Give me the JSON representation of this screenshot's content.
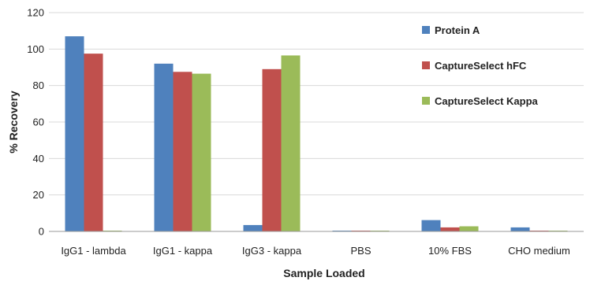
{
  "chart_data": {
    "type": "bar",
    "title": "",
    "xlabel": "Sample Loaded",
    "ylabel": "% Recovery",
    "ylim": [
      0,
      120
    ],
    "yticks": [
      0,
      20,
      40,
      60,
      80,
      100,
      120
    ],
    "grid": true,
    "legend_position": "top-right",
    "categories": [
      "IgG1 - lambda",
      "IgG1 - kappa",
      "IgG3 - kappa",
      "PBS",
      "10% FBS",
      "CHO medium"
    ],
    "series": [
      {
        "name": "Protein A",
        "color": "#4f81bd",
        "values": [
          107,
          92,
          3.5,
          0.2,
          6.2,
          2.2
        ]
      },
      {
        "name": "CaptureSelect hFC",
        "color": "#c0504d",
        "values": [
          97.5,
          87.5,
          89,
          0.2,
          2.2,
          0.2
        ]
      },
      {
        "name": "CaptureSelect Kappa",
        "color": "#9bbb59",
        "values": [
          0.2,
          86.5,
          96.5,
          0.2,
          2.8,
          0.2
        ]
      }
    ]
  }
}
